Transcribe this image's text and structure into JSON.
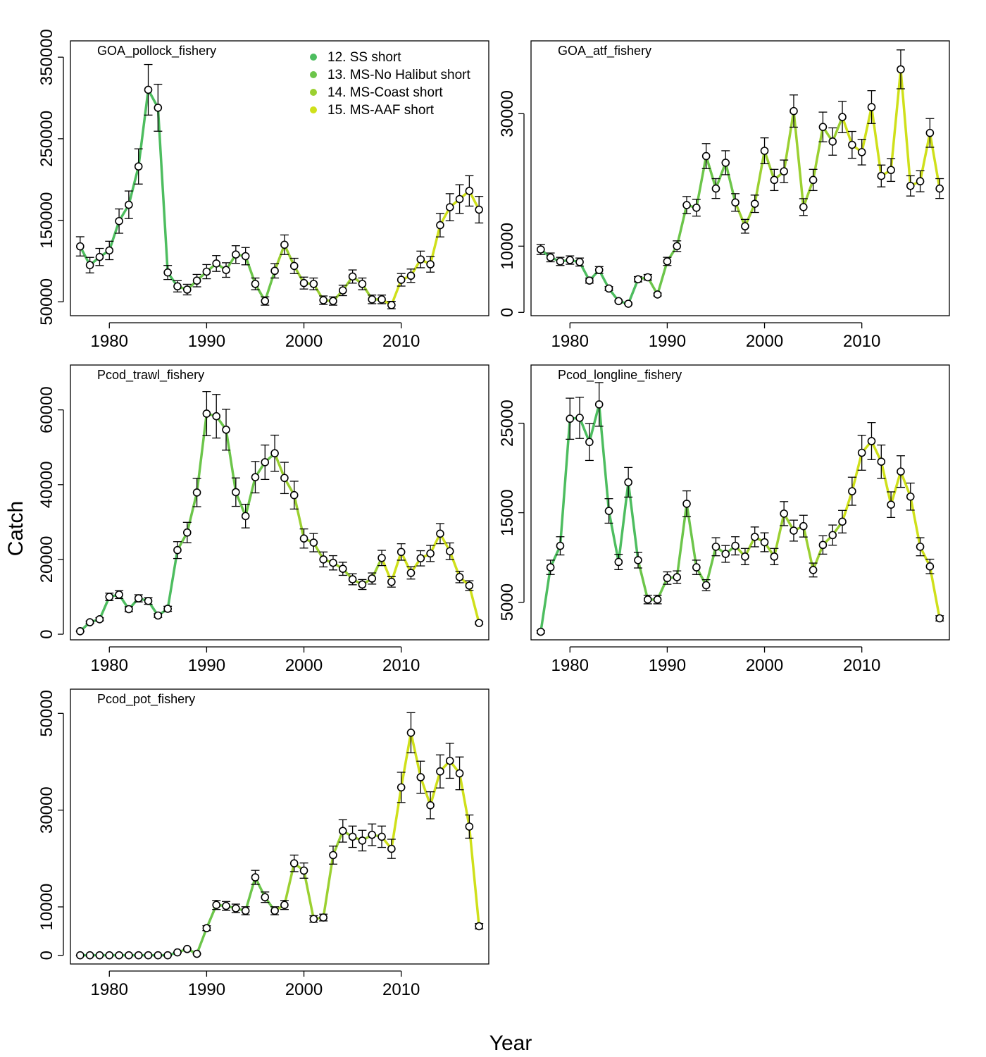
{
  "figure": {
    "xlabel": "Year",
    "ylabel": "Catch"
  },
  "legend": {
    "entries": [
      {
        "label": "12. SS short",
        "color": "#4dbd5f"
      },
      {
        "label": "13. MS-No Halibut short",
        "color": "#6cc54a"
      },
      {
        "label": "14. MS-Coast short",
        "color": "#9bd031"
      },
      {
        "label": "15. MS-AAF short",
        "color": "#cfe01a"
      }
    ]
  },
  "chart_data": [
    {
      "type": "line",
      "title": "GOA_pollock_fishery",
      "x_start": 1977,
      "xlim": [
        1976,
        2019
      ],
      "xticks": [
        1980,
        1990,
        2000,
        2010
      ],
      "ylim": [
        33000,
        370000
      ],
      "yticks": [
        50000,
        150000,
        250000,
        350000
      ],
      "ytick_labels": [
        "50000",
        "150000",
        "250000",
        "350000"
      ],
      "values": [
        118000,
        95000,
        105000,
        113000,
        149000,
        169000,
        216000,
        310000,
        288000,
        86000,
        69000,
        65000,
        76000,
        87000,
        97000,
        89000,
        108000,
        106000,
        72000,
        51000,
        88000,
        120000,
        94000,
        73000,
        72000,
        52000,
        51000,
        64000,
        81000,
        72000,
        53000,
        53000,
        46000,
        77000,
        82000,
        102000,
        96000,
        144000,
        166000,
        176000,
        186000,
        163000
      ],
      "rel_err": 0.1
    },
    {
      "type": "line",
      "title": "GOA_atf_fishery",
      "x_start": 1977,
      "xlim": [
        1976,
        2019
      ],
      "xticks": [
        1980,
        1990,
        2000,
        2010
      ],
      "ylim": [
        -500,
        41000
      ],
      "yticks": [
        0,
        10000,
        30000
      ],
      "ytick_labels": [
        "0",
        "10000",
        "30000"
      ],
      "values": [
        9500,
        8300,
        7700,
        7900,
        7600,
        4800,
        6400,
        3600,
        1700,
        1300,
        5000,
        5300,
        2700,
        7700,
        10000,
        16200,
        15800,
        23600,
        18700,
        22600,
        16600,
        13000,
        16400,
        24400,
        20000,
        21300,
        30400,
        15900,
        20000,
        28000,
        25800,
        29500,
        25300,
        24200,
        31000,
        20600,
        21500,
        36700,
        19100,
        19800,
        27100,
        18700
      ],
      "rel_err": 0.08
    },
    {
      "type": "line",
      "title": "Pcod_trawl_fishery",
      "x_start": 1977,
      "xlim": [
        1976,
        2019
      ],
      "xticks": [
        1980,
        1990,
        2000,
        2010
      ],
      "ylim": [
        -1500,
        72000
      ],
      "yticks": [
        0,
        20000,
        40000,
        60000
      ],
      "ytick_labels": [
        "0",
        "20000",
        "40000",
        "60000"
      ],
      "values": [
        800,
        3200,
        4000,
        10000,
        10600,
        6700,
        9600,
        8900,
        5000,
        6800,
        22500,
        27200,
        37900,
        59000,
        58300,
        54700,
        38000,
        31600,
        42000,
        46000,
        48400,
        41800,
        37200,
        25600,
        24500,
        20000,
        19100,
        17500,
        14700,
        13300,
        14900,
        20400,
        14000,
        22000,
        16400,
        20300,
        21600,
        26900,
        22200,
        15300,
        13000,
        3000
      ],
      "rel_err": 0.1
    },
    {
      "type": "line",
      "title": "Pcod_longline_fishery",
      "x_start": 1977,
      "xlim": [
        1976,
        2019
      ],
      "xticks": [
        1980,
        1990,
        2000,
        2010
      ],
      "ylim": [
        800,
        31500
      ],
      "yticks": [
        5000,
        15000,
        25000
      ],
      "ytick_labels": [
        "5000",
        "15000",
        "25000"
      ],
      "values": [
        1700,
        8900,
        11300,
        25500,
        25600,
        22900,
        27100,
        15200,
        9500,
        18400,
        9700,
        5300,
        5300,
        7700,
        7800,
        16000,
        8900,
        6900,
        11200,
        10400,
        11300,
        10100,
        12300,
        11700,
        10100,
        14900,
        13000,
        13500,
        8600,
        11400,
        12500,
        14000,
        17400,
        21700,
        23000,
        20700,
        15900,
        19600,
        16800,
        11200,
        9000,
        3200
      ],
      "rel_err": 0.09
    },
    {
      "type": "line",
      "title": "Pcod_pot_fishery",
      "x_start": 1977,
      "xlim": [
        1976,
        2019
      ],
      "xticks": [
        1980,
        1990,
        2000,
        2010
      ],
      "ylim": [
        -1800,
        55000
      ],
      "yticks": [
        0,
        10000,
        30000,
        50000
      ],
      "ytick_labels": [
        "0",
        "10000",
        "30000",
        "50000"
      ],
      "values": [
        0,
        0,
        0,
        0,
        0,
        0,
        0,
        0,
        0,
        0,
        600,
        1300,
        300,
        5600,
        10400,
        10200,
        9700,
        9200,
        16100,
        12000,
        9200,
        10400,
        19000,
        17500,
        7500,
        7800,
        20700,
        25700,
        24500,
        23700,
        24900,
        24500,
        22000,
        34700,
        46000,
        36800,
        31000,
        38000,
        40200,
        37600,
        26600,
        6000
      ],
      "rel_err": 0.09
    }
  ]
}
